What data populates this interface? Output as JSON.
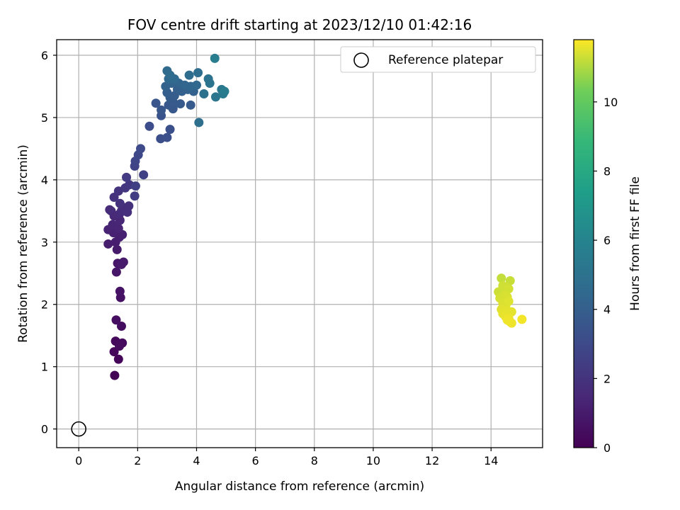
{
  "chart_data": {
    "type": "scatter",
    "title": "FOV centre drift starting at 2023/12/10 01:42:16",
    "xlabel": "Angular distance from reference (arcmin)",
    "ylabel": "Rotation from reference (arcmin)",
    "xlim": [
      -0.75,
      15.75
    ],
    "ylim": [
      -0.3,
      6.25
    ],
    "xticks": [
      0,
      2,
      4,
      6,
      8,
      10,
      12,
      14
    ],
    "yticks": [
      0,
      1,
      2,
      3,
      4,
      5,
      6
    ],
    "grid": true,
    "legend": {
      "placement": "top-right",
      "entries": [
        "Reference platepar"
      ]
    },
    "reference_point": {
      "name": "Reference platepar",
      "x": 0,
      "y": 0
    },
    "colorbar": {
      "label": "Hours from first FF file",
      "colormap": "viridis",
      "range": [
        0,
        11.8
      ],
      "ticks": [
        0,
        2,
        4,
        6,
        8,
        10
      ]
    },
    "points": [
      {
        "x": 1.22,
        "y": 0.86,
        "t": 0.1
      },
      {
        "x": 1.35,
        "y": 1.12,
        "t": 0.2
      },
      {
        "x": 1.2,
        "y": 1.24,
        "t": 0.25
      },
      {
        "x": 1.25,
        "y": 1.41,
        "t": 0.3
      },
      {
        "x": 1.48,
        "y": 1.38,
        "t": 0.35
      },
      {
        "x": 1.38,
        "y": 1.33,
        "t": 0.4
      },
      {
        "x": 1.45,
        "y": 1.65,
        "t": 0.45
      },
      {
        "x": 1.27,
        "y": 1.75,
        "t": 0.5
      },
      {
        "x": 1.42,
        "y": 2.11,
        "t": 0.6
      },
      {
        "x": 1.4,
        "y": 2.21,
        "t": 0.65
      },
      {
        "x": 1.28,
        "y": 2.52,
        "t": 0.8
      },
      {
        "x": 1.32,
        "y": 2.66,
        "t": 0.85
      },
      {
        "x": 1.52,
        "y": 2.68,
        "t": 0.9
      },
      {
        "x": 1.45,
        "y": 2.64,
        "t": 0.95
      },
      {
        "x": 1.3,
        "y": 2.88,
        "t": 1.0
      },
      {
        "x": 1.0,
        "y": 2.97,
        "t": 1.05
      },
      {
        "x": 1.25,
        "y": 3.0,
        "t": 1.1
      },
      {
        "x": 1.38,
        "y": 3.08,
        "t": 1.15
      },
      {
        "x": 1.48,
        "y": 3.12,
        "t": 1.2
      },
      {
        "x": 1.18,
        "y": 3.15,
        "t": 1.25
      },
      {
        "x": 1.0,
        "y": 3.2,
        "t": 1.3
      },
      {
        "x": 1.35,
        "y": 3.22,
        "t": 1.35
      },
      {
        "x": 1.15,
        "y": 3.28,
        "t": 1.4
      },
      {
        "x": 1.4,
        "y": 3.35,
        "t": 1.45
      },
      {
        "x": 1.2,
        "y": 3.42,
        "t": 1.5
      },
      {
        "x": 1.38,
        "y": 3.45,
        "t": 1.55
      },
      {
        "x": 1.1,
        "y": 3.5,
        "t": 1.6
      },
      {
        "x": 1.05,
        "y": 3.52,
        "t": 1.65
      },
      {
        "x": 1.45,
        "y": 3.5,
        "t": 1.7
      },
      {
        "x": 1.55,
        "y": 3.55,
        "t": 1.75
      },
      {
        "x": 1.65,
        "y": 3.48,
        "t": 1.8
      },
      {
        "x": 1.7,
        "y": 3.58,
        "t": 1.85
      },
      {
        "x": 1.4,
        "y": 3.62,
        "t": 1.9
      },
      {
        "x": 1.2,
        "y": 3.72,
        "t": 1.95
      },
      {
        "x": 1.35,
        "y": 3.82,
        "t": 2.0
      },
      {
        "x": 1.58,
        "y": 3.87,
        "t": 2.1
      },
      {
        "x": 1.72,
        "y": 3.92,
        "t": 2.2
      },
      {
        "x": 1.62,
        "y": 4.04,
        "t": 2.3
      },
      {
        "x": 1.9,
        "y": 3.74,
        "t": 2.4
      },
      {
        "x": 1.93,
        "y": 3.9,
        "t": 2.5
      },
      {
        "x": 2.2,
        "y": 4.08,
        "t": 2.6
      },
      {
        "x": 1.9,
        "y": 4.22,
        "t": 2.7
      },
      {
        "x": 1.92,
        "y": 4.3,
        "t": 2.8
      },
      {
        "x": 2.02,
        "y": 4.4,
        "t": 2.9
      },
      {
        "x": 2.1,
        "y": 4.5,
        "t": 3.0
      },
      {
        "x": 2.4,
        "y": 4.86,
        "t": 3.1
      },
      {
        "x": 2.78,
        "y": 4.66,
        "t": 3.2
      },
      {
        "x": 3.0,
        "y": 4.68,
        "t": 3.25
      },
      {
        "x": 3.1,
        "y": 4.81,
        "t": 3.3
      },
      {
        "x": 2.8,
        "y": 5.03,
        "t": 3.4
      },
      {
        "x": 2.62,
        "y": 5.23,
        "t": 3.5
      },
      {
        "x": 2.8,
        "y": 5.12,
        "t": 3.55
      },
      {
        "x": 3.2,
        "y": 5.14,
        "t": 3.6
      },
      {
        "x": 3.05,
        "y": 5.2,
        "t": 3.65
      },
      {
        "x": 3.2,
        "y": 5.25,
        "t": 3.7
      },
      {
        "x": 3.45,
        "y": 5.22,
        "t": 3.75
      },
      {
        "x": 3.8,
        "y": 5.2,
        "t": 3.8
      },
      {
        "x": 3.1,
        "y": 5.32,
        "t": 3.85
      },
      {
        "x": 3.25,
        "y": 5.35,
        "t": 3.9
      },
      {
        "x": 3.0,
        "y": 5.4,
        "t": 3.95
      },
      {
        "x": 3.35,
        "y": 5.45,
        "t": 4.0
      },
      {
        "x": 3.5,
        "y": 5.42,
        "t": 4.05
      },
      {
        "x": 3.7,
        "y": 5.45,
        "t": 4.1
      },
      {
        "x": 3.9,
        "y": 5.42,
        "t": 4.15
      },
      {
        "x": 2.95,
        "y": 5.5,
        "t": 4.2
      },
      {
        "x": 3.15,
        "y": 5.55,
        "t": 4.25
      },
      {
        "x": 3.4,
        "y": 5.55,
        "t": 4.3
      },
      {
        "x": 3.6,
        "y": 5.52,
        "t": 4.35
      },
      {
        "x": 3.8,
        "y": 5.5,
        "t": 4.4
      },
      {
        "x": 4.0,
        "y": 5.52,
        "t": 4.45
      },
      {
        "x": 3.05,
        "y": 5.62,
        "t": 4.5
      },
      {
        "x": 3.25,
        "y": 5.62,
        "t": 4.55
      },
      {
        "x": 3.0,
        "y": 5.75,
        "t": 4.6
      },
      {
        "x": 3.1,
        "y": 5.68,
        "t": 4.65
      },
      {
        "x": 3.75,
        "y": 5.68,
        "t": 4.7
      },
      {
        "x": 4.05,
        "y": 5.72,
        "t": 4.75
      },
      {
        "x": 4.08,
        "y": 4.92,
        "t": 4.8
      },
      {
        "x": 4.25,
        "y": 5.38,
        "t": 4.9
      },
      {
        "x": 4.4,
        "y": 5.62,
        "t": 5.0
      },
      {
        "x": 4.45,
        "y": 5.55,
        "t": 5.1
      },
      {
        "x": 4.65,
        "y": 5.33,
        "t": 5.2
      },
      {
        "x": 4.85,
        "y": 5.45,
        "t": 5.3
      },
      {
        "x": 4.9,
        "y": 5.38,
        "t": 5.4
      },
      {
        "x": 4.95,
        "y": 5.42,
        "t": 5.5
      },
      {
        "x": 4.62,
        "y": 5.95,
        "t": 5.6
      },
      {
        "x": 14.35,
        "y": 2.42,
        "t": 11.2
      },
      {
        "x": 14.65,
        "y": 2.38,
        "t": 11.25
      },
      {
        "x": 14.25,
        "y": 2.2,
        "t": 11.3
      },
      {
        "x": 14.4,
        "y": 2.3,
        "t": 11.32
      },
      {
        "x": 14.5,
        "y": 2.28,
        "t": 11.34
      },
      {
        "x": 14.6,
        "y": 2.25,
        "t": 11.36
      },
      {
        "x": 14.3,
        "y": 2.1,
        "t": 11.38
      },
      {
        "x": 14.45,
        "y": 2.15,
        "t": 11.4
      },
      {
        "x": 14.55,
        "y": 2.12,
        "t": 11.42
      },
      {
        "x": 14.4,
        "y": 2.02,
        "t": 11.44
      },
      {
        "x": 14.5,
        "y": 1.98,
        "t": 11.46
      },
      {
        "x": 14.6,
        "y": 2.05,
        "t": 11.48
      },
      {
        "x": 14.35,
        "y": 1.92,
        "t": 11.5
      },
      {
        "x": 14.55,
        "y": 1.9,
        "t": 11.52
      },
      {
        "x": 14.7,
        "y": 1.88,
        "t": 11.54
      },
      {
        "x": 14.4,
        "y": 1.85,
        "t": 11.56
      },
      {
        "x": 14.5,
        "y": 1.8,
        "t": 11.58
      },
      {
        "x": 14.6,
        "y": 1.78,
        "t": 11.6
      },
      {
        "x": 14.65,
        "y": 1.72,
        "t": 11.62
      },
      {
        "x": 14.7,
        "y": 1.7,
        "t": 11.64
      },
      {
        "x": 14.55,
        "y": 1.75,
        "t": 11.66
      },
      {
        "x": 15.05,
        "y": 1.76,
        "t": 11.7
      }
    ]
  }
}
